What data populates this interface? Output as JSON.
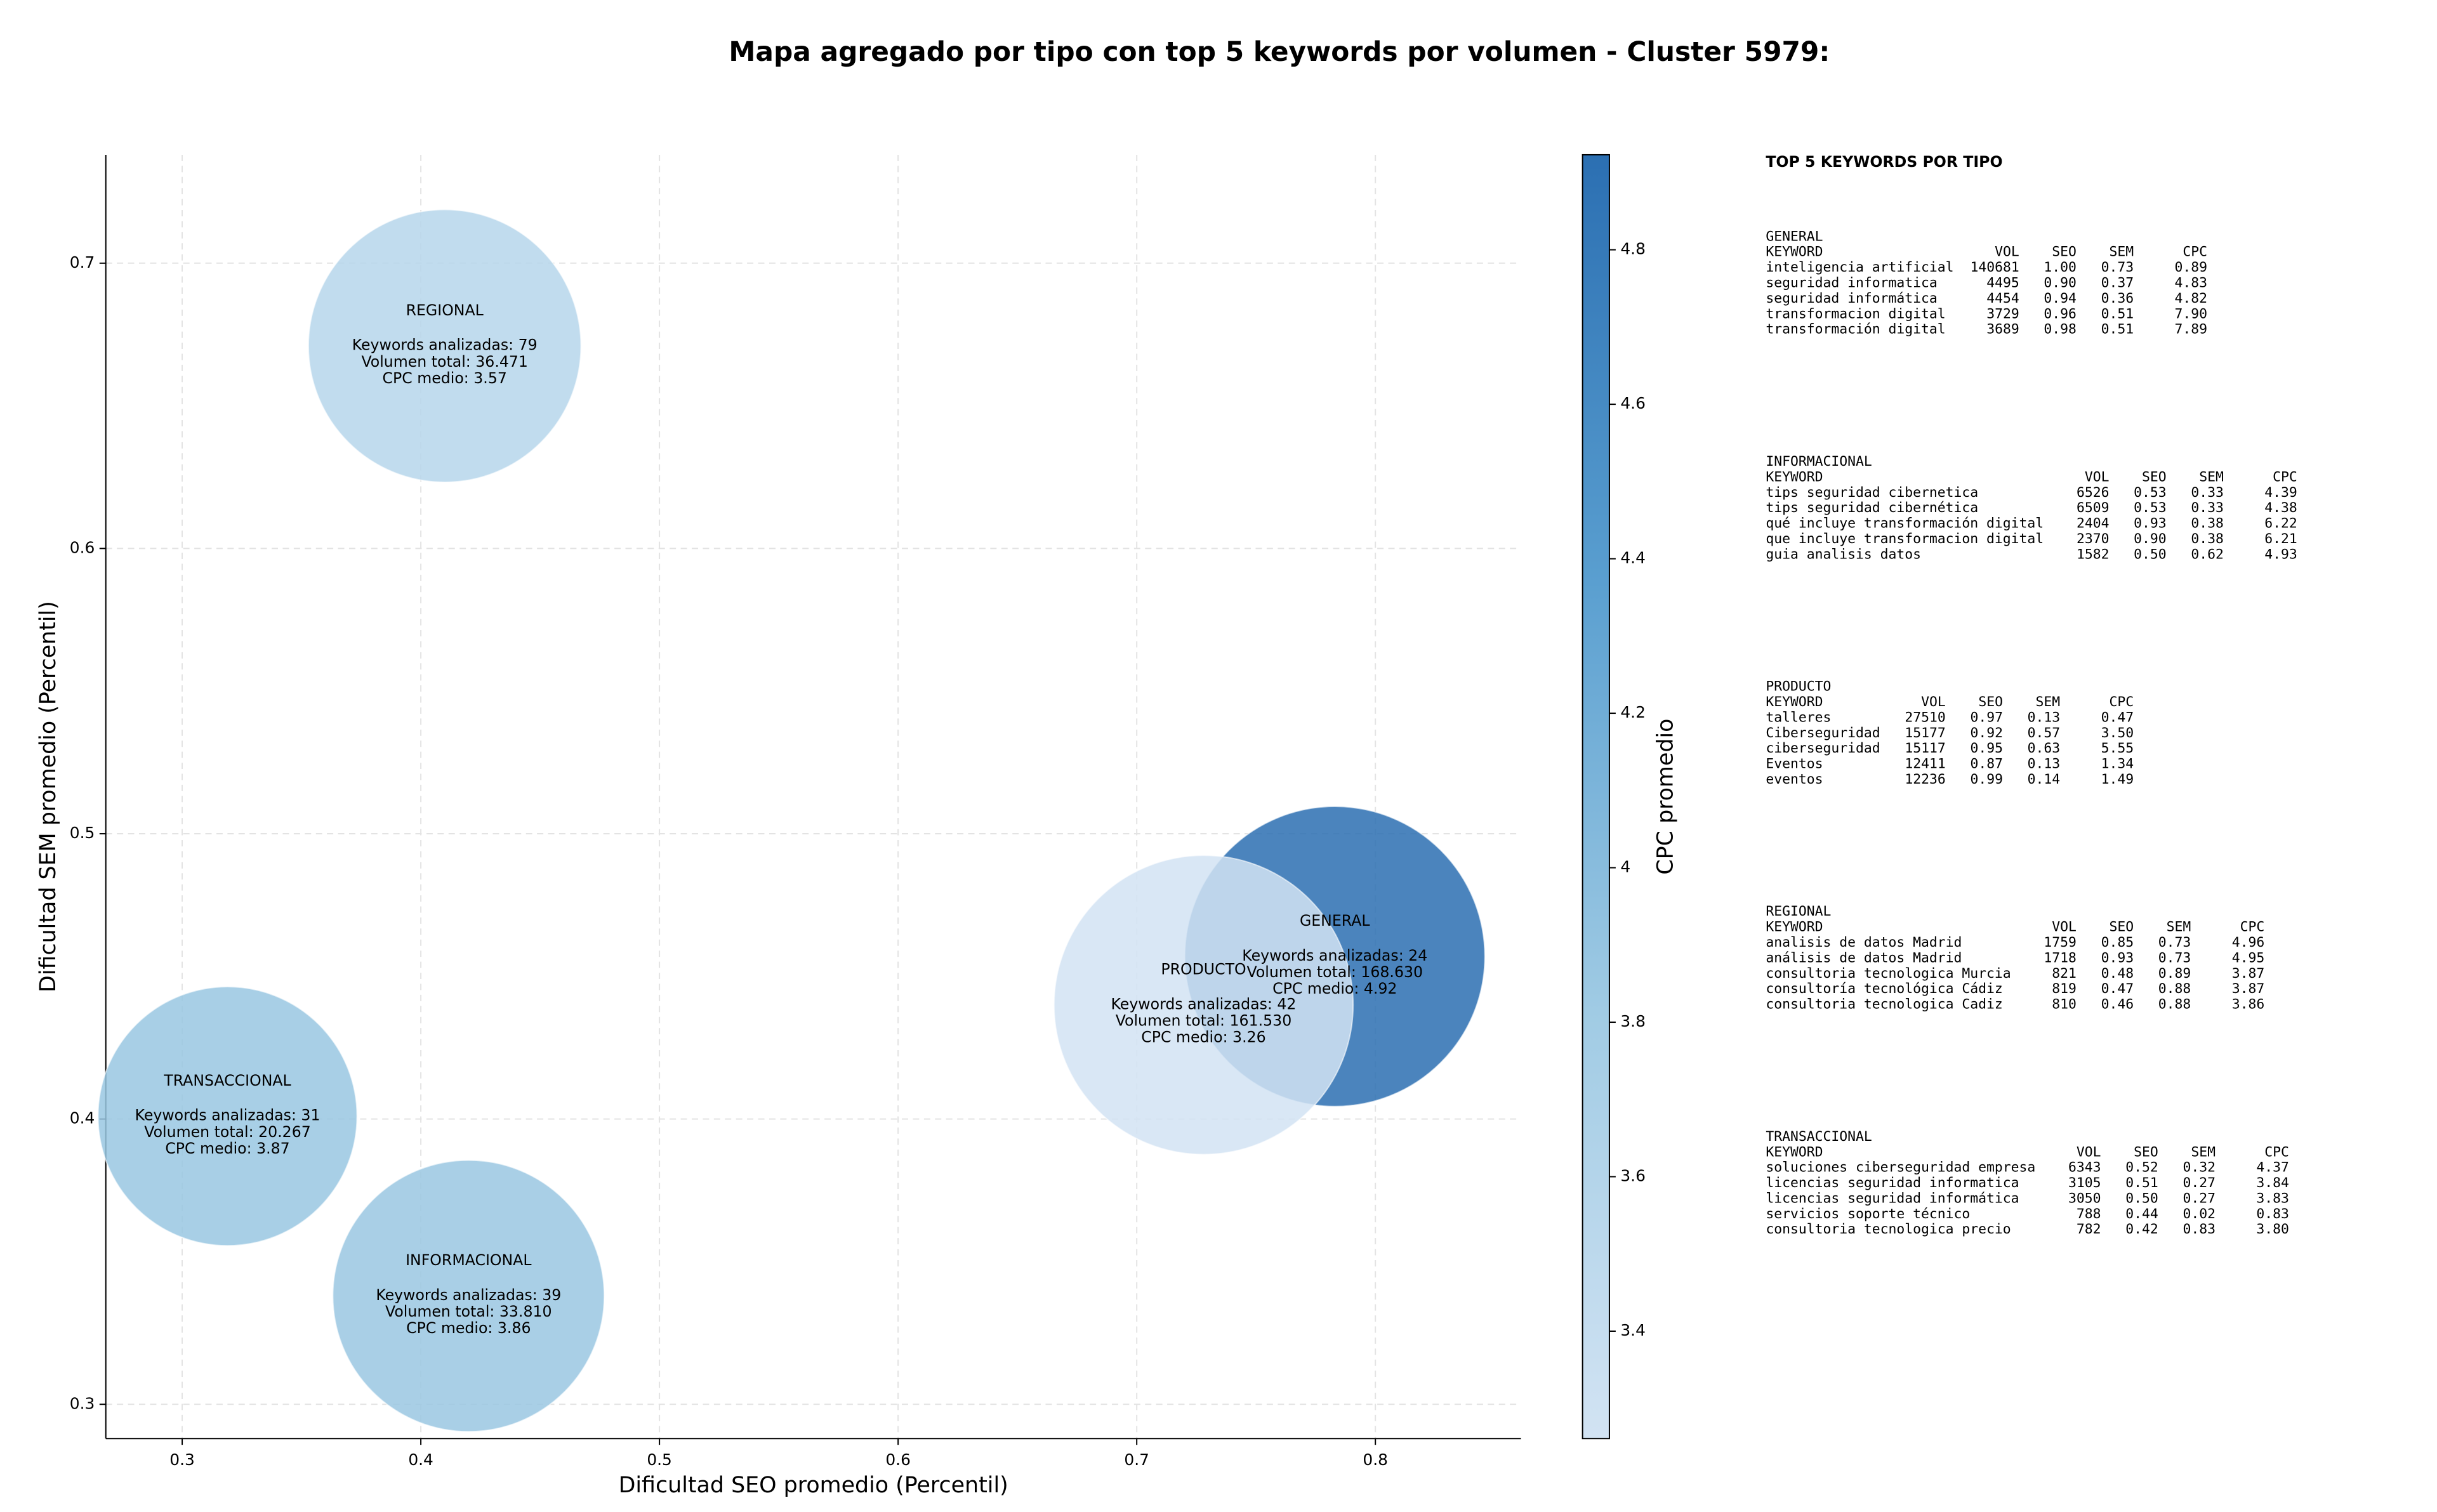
{
  "chart_data": {
    "type": "bubble",
    "title": "Mapa agregado por tipo con top 5 keywords por volumen - Cluster 5979:",
    "x_label": "Dificultad SEO promedio (Percentil)",
    "y_label": "Dificultad SEM promedio (Percentil)",
    "colorbar_label": "CPC promedio",
    "xlim": [
      0.268,
      0.861
    ],
    "ylim": [
      0.288,
      0.738
    ],
    "xticks": [
      0.3,
      0.4,
      0.5,
      0.6,
      0.7,
      0.8
    ],
    "yticks": [
      0.3,
      0.4,
      0.5,
      0.6,
      0.7
    ],
    "clim": [
      3.261,
      4.923
    ],
    "cticks": [
      3.4,
      3.6,
      3.8,
      4.0,
      4.2,
      4.4,
      4.6,
      4.8
    ],
    "colormap": [
      "#d2e3f3",
      "#a0cbe4",
      "#5a9fd0",
      "#2b6fb2"
    ],
    "grid": true,
    "points": [
      {
        "x": 0.41,
        "y": 0.671,
        "size": 36471,
        "cpc": 3.57,
        "text": [
          "REGIONAL",
          "Keywords analizadas: 79",
          "Volumen total: 36.471",
          "CPC medio: 3.57"
        ]
      },
      {
        "x": 0.319,
        "y": 0.401,
        "size": 20267,
        "cpc": 3.87,
        "text": [
          "TRANSACCIONAL",
          "Keywords analizadas: 31",
          "Volumen total: 20.267",
          "CPC medio: 3.87"
        ]
      },
      {
        "x": 0.42,
        "y": 0.338,
        "size": 33810,
        "cpc": 3.86,
        "text": [
          "INFORMACIONAL",
          "Keywords analizadas: 39",
          "Volumen total: 33.810",
          "CPC medio: 3.86"
        ]
      },
      {
        "x": 0.783,
        "y": 0.457,
        "size": 168630,
        "cpc": 4.92,
        "text": [
          "GENERAL",
          "Keywords analizadas: 24",
          "Volumen total: 168.630",
          "CPC medio: 4.92"
        ]
      },
      {
        "x": 0.728,
        "y": 0.44,
        "size": 161530,
        "cpc": 3.26,
        "text": [
          "PRODUCTO",
          "Keywords analizadas: 42",
          "Volumen total: 161.530",
          "CPC medio: 3.26"
        ]
      }
    ]
  },
  "side_panel": {
    "title": "TOP 5 KEYWORDS POR TIPO",
    "columns": [
      "KEYWORD",
      "VOL",
      "SEO",
      "SEM",
      "CPC"
    ],
    "sections": [
      {
        "name": "GENERAL",
        "rows": [
          [
            "inteligencia artificial",
            "140681",
            "1.00",
            "0.73",
            "0.89"
          ],
          [
            "seguridad informatica",
            "4495",
            "0.90",
            "0.37",
            "4.83"
          ],
          [
            "seguridad informática",
            "4454",
            "0.94",
            "0.36",
            "4.82"
          ],
          [
            "transformacion digital",
            "3729",
            "0.96",
            "0.51",
            "7.90"
          ],
          [
            "transformación digital",
            "3689",
            "0.98",
            "0.51",
            "7.89"
          ]
        ]
      },
      {
        "name": "INFORMACIONAL",
        "rows": [
          [
            "tips seguridad cibernetica",
            "6526",
            "0.53",
            "0.33",
            "4.39"
          ],
          [
            "tips seguridad cibernética",
            "6509",
            "0.53",
            "0.33",
            "4.38"
          ],
          [
            "qué incluye transformación digital",
            "2404",
            "0.93",
            "0.38",
            "6.22"
          ],
          [
            "que incluye transformacion digital",
            "2370",
            "0.90",
            "0.38",
            "6.21"
          ],
          [
            "guia analisis datos",
            "1582",
            "0.50",
            "0.62",
            "4.93"
          ]
        ]
      },
      {
        "name": "PRODUCTO",
        "rows": [
          [
            "talleres",
            "27510",
            "0.97",
            "0.13",
            "0.47"
          ],
          [
            "Ciberseguridad",
            "15177",
            "0.92",
            "0.57",
            "3.50"
          ],
          [
            "ciberseguridad",
            "15117",
            "0.95",
            "0.63",
            "5.55"
          ],
          [
            "Eventos",
            "12411",
            "0.87",
            "0.13",
            "1.34"
          ],
          [
            "eventos",
            "12236",
            "0.99",
            "0.14",
            "1.49"
          ]
        ]
      },
      {
        "name": "REGIONAL",
        "rows": [
          [
            "analisis de datos Madrid",
            "1759",
            "0.85",
            "0.73",
            "4.96"
          ],
          [
            "análisis de datos Madrid",
            "1718",
            "0.93",
            "0.73",
            "4.95"
          ],
          [
            "consultoria tecnologica Murcia",
            "821",
            "0.48",
            "0.89",
            "3.87"
          ],
          [
            "consultoría tecnológica Cádiz",
            "819",
            "0.47",
            "0.88",
            "3.87"
          ],
          [
            "consultoria tecnologica Cadiz",
            "810",
            "0.46",
            "0.88",
            "3.86"
          ]
        ]
      },
      {
        "name": "TRANSACCIONAL",
        "rows": [
          [
            "soluciones ciberseguridad empresa",
            "6343",
            "0.52",
            "0.32",
            "4.37"
          ],
          [
            "licencias seguridad informatica",
            "3105",
            "0.51",
            "0.27",
            "3.84"
          ],
          [
            "licencias seguridad informática",
            "3050",
            "0.50",
            "0.27",
            "3.83"
          ],
          [
            "servicios soporte técnico",
            "788",
            "0.44",
            "0.02",
            "0.83"
          ],
          [
            "consultoria tecnologica precio",
            "782",
            "0.42",
            "0.83",
            "3.80"
          ]
        ]
      }
    ]
  }
}
